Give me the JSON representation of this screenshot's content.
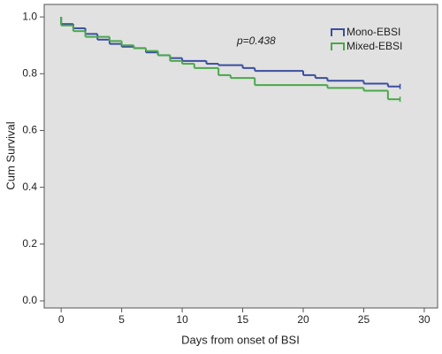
{
  "chart_data": {
    "type": "line",
    "step": "post",
    "annotation": "p=0.438",
    "x_label": "Days from onset of BSI",
    "y_label": "Cum Survival",
    "series": [
      {
        "name": "Mono-EBSI",
        "color": "#3b4ea0",
        "x": [
          0,
          0,
          1,
          2,
          3,
          4,
          5,
          6,
          7,
          8,
          9,
          10,
          12,
          13,
          15,
          16,
          20,
          21,
          22,
          25,
          27,
          28
        ],
        "values": [
          1.0,
          0.975,
          0.96,
          0.94,
          0.92,
          0.905,
          0.895,
          0.89,
          0.875,
          0.865,
          0.855,
          0.845,
          0.835,
          0.83,
          0.82,
          0.81,
          0.795,
          0.785,
          0.775,
          0.765,
          0.755,
          0.755
        ]
      },
      {
        "name": "Mixed-EBSI",
        "color": "#4aa84a",
        "x": [
          0,
          0,
          1,
          2,
          4,
          5,
          6,
          7,
          8,
          9,
          10,
          11,
          13,
          14,
          16,
          22,
          25,
          27,
          28
        ],
        "values": [
          1.0,
          0.97,
          0.95,
          0.93,
          0.915,
          0.9,
          0.89,
          0.88,
          0.865,
          0.845,
          0.835,
          0.82,
          0.795,
          0.785,
          0.76,
          0.75,
          0.74,
          0.71,
          0.71
        ]
      }
    ],
    "xlim": [
      -1.4,
      31.1
    ],
    "xticks": [
      0,
      5,
      10,
      15,
      20,
      25,
      30
    ],
    "ylim": [
      -0.025,
      1.044
    ],
    "yticks": [
      {
        "value": 0,
        "label": "0.0"
      },
      {
        "value": 0.2,
        "label": "0.2"
      },
      {
        "value": 0.4,
        "label": "0.4"
      },
      {
        "value": 0.6,
        "label": "0.6"
      },
      {
        "value": 0.8,
        "label": "0.8"
      },
      {
        "value": 1,
        "label": "1.0"
      }
    ],
    "legend": "top-right"
  }
}
